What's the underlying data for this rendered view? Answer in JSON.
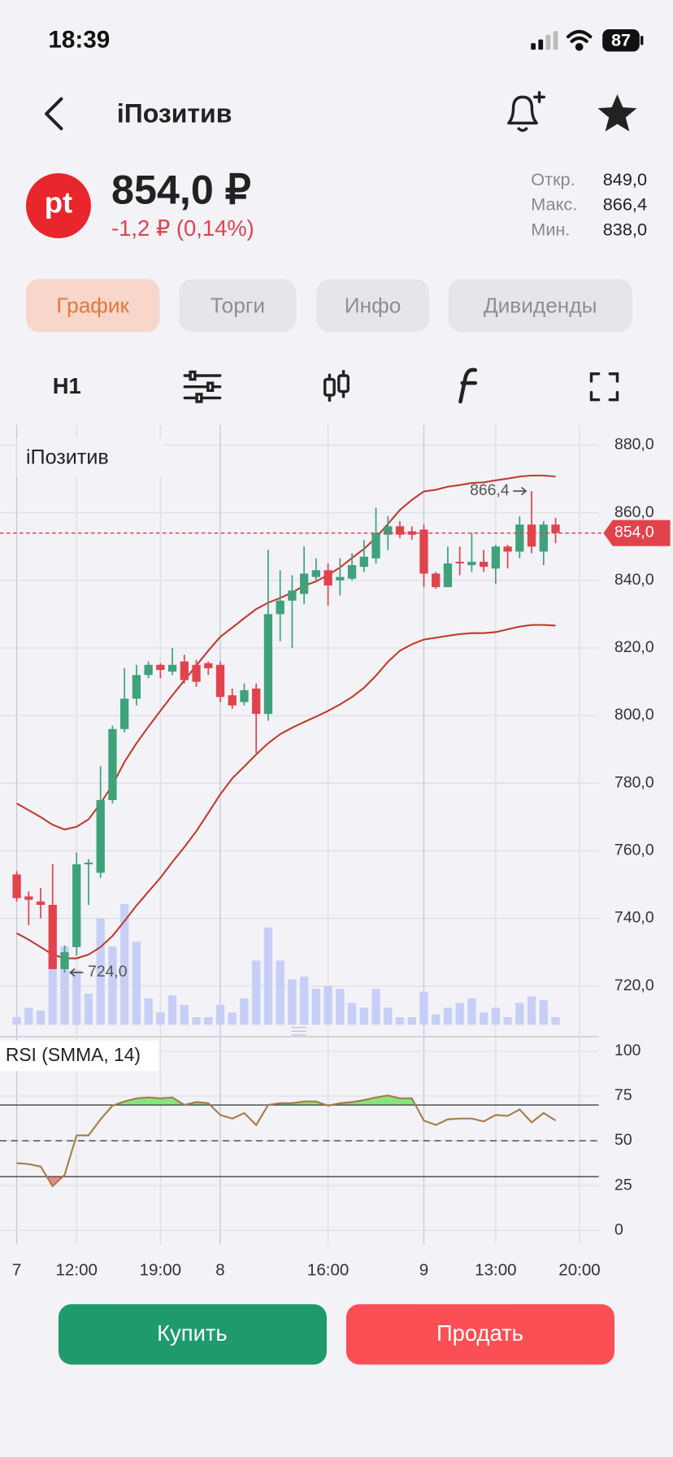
{
  "status_bar": {
    "time": "18:39",
    "battery": "87"
  },
  "header": {
    "title": "iПозитив"
  },
  "quote": {
    "logo": "pt",
    "price": "854,0 ₽",
    "change": "-1,2 ₽ (0,14%)",
    "stats": [
      {
        "label": "Откр.",
        "value": "849,0"
      },
      {
        "label": "Макс.",
        "value": "866,4"
      },
      {
        "label": "Мин.",
        "value": "838,0"
      }
    ]
  },
  "tabs": [
    {
      "label": "График",
      "active": true
    },
    {
      "label": "Торги",
      "active": false
    },
    {
      "label": "Инфо",
      "active": false
    },
    {
      "label": "Дивиденды",
      "active": false
    }
  ],
  "toolbar": {
    "interval": "H1"
  },
  "chart_data": [
    {
      "type": "candlestick",
      "title": "iПозитив",
      "categories": [
        "7",
        null,
        null,
        null,
        null,
        "12:00",
        null,
        null,
        null,
        null,
        null,
        null,
        "19:00",
        null,
        null,
        null,
        null,
        "8",
        null,
        null,
        null,
        null,
        null,
        null,
        null,
        null,
        "16:00",
        null,
        null,
        null,
        null,
        null,
        null,
        null,
        "9",
        null,
        null,
        null,
        null,
        null,
        "13:00",
        null,
        null,
        null,
        null,
        null,
        null,
        "20:00"
      ],
      "open": [
        753,
        746.5,
        745,
        744,
        725,
        731.5,
        756,
        753.5,
        775,
        796,
        805,
        812,
        815,
        813,
        816,
        815,
        815.5,
        815,
        806,
        804,
        808,
        800.5,
        830,
        834,
        836,
        841,
        843,
        840,
        840.5,
        844,
        846.5,
        853.5,
        856,
        854.5,
        855,
        842,
        838,
        845.5,
        844.5,
        845.5,
        843.5,
        850,
        848.5,
        856.5,
        848.5,
        856.5,
        null,
        null
      ],
      "high": [
        754,
        748,
        749,
        756,
        732,
        759.5,
        757.5,
        785,
        797,
        814,
        815,
        816,
        815.5,
        820,
        818,
        816.5,
        816,
        816,
        808,
        809.5,
        809.5,
        849,
        843,
        841.5,
        850,
        846.5,
        845,
        846.5,
        848,
        852,
        861.5,
        859,
        857.5,
        856,
        856.5,
        842.5,
        850,
        850,
        854,
        849,
        850.5,
        850.5,
        859,
        866.4,
        857.5,
        858.5,
        null,
        null
      ],
      "low": [
        745,
        738,
        740,
        725,
        724,
        729,
        744,
        752,
        774,
        795,
        803,
        811,
        811,
        812,
        809.5,
        808.5,
        812,
        804,
        802,
        803,
        789,
        798.5,
        822,
        820,
        833,
        840,
        832.5,
        835.5,
        840,
        842.5,
        845,
        849,
        852.5,
        852,
        838,
        837.5,
        838,
        841.5,
        842.5,
        842.5,
        839,
        843.5,
        846.5,
        848,
        844.5,
        851,
        null,
        null
      ],
      "close": [
        746,
        745.5,
        744,
        725,
        730,
        756,
        756.5,
        775,
        796,
        805,
        812,
        815,
        813.5,
        815,
        810.5,
        810,
        814,
        805.5,
        803,
        807.5,
        800.5,
        830,
        834,
        837,
        842,
        843,
        838.5,
        841,
        844.5,
        847,
        854,
        856,
        853.5,
        853.5,
        842,
        838,
        845,
        845,
        845.5,
        844,
        850,
        848.5,
        856.5,
        850,
        856.5,
        854,
        null,
        null
      ],
      "volume": [
        8,
        18,
        15,
        68,
        83,
        58,
        33,
        113,
        83,
        128,
        88,
        28,
        13,
        31,
        21,
        8,
        8,
        21,
        13,
        28,
        68,
        103,
        68,
        48,
        51,
        38,
        41,
        38,
        23,
        18,
        38,
        18,
        8,
        8,
        35,
        11,
        18,
        23,
        28,
        13,
        18,
        8,
        23,
        30,
        26,
        8,
        null,
        null
      ],
      "bollinger_upper": [
        774,
        772,
        770,
        767.7,
        766.3,
        767.1,
        769.3,
        774,
        779.5,
        786.3,
        791.8,
        796.7,
        801.4,
        806,
        810.4,
        814.8,
        819.2,
        823.3,
        826,
        828.8,
        831.5,
        833.4,
        834.8,
        836.4,
        838.4,
        839.7,
        841.6,
        843.8,
        846.6,
        849.3,
        852.6,
        856.7,
        860.8,
        863.8,
        866.3,
        866.8,
        867.7,
        868.2,
        868.8,
        869,
        869.6,
        870.1,
        870.7,
        871,
        871,
        870.7,
        null,
        null
      ],
      "bollinger_lower": [
        735.6,
        733.7,
        731.5,
        729.3,
        728.2,
        728.2,
        729.3,
        731.5,
        734.8,
        739.2,
        743.8,
        747.9,
        752,
        756.7,
        761.1,
        765.8,
        771.2,
        776.7,
        781.4,
        784.9,
        788.5,
        791.8,
        794.5,
        796.4,
        798.1,
        799.7,
        801.4,
        803.3,
        805.5,
        808.2,
        811.8,
        815.9,
        819.2,
        821.1,
        822.5,
        823,
        823.6,
        824.1,
        824.4,
        824.4,
        824.7,
        825.5,
        826.3,
        826.8,
        826.8,
        826.6,
        null,
        null
      ],
      "ylim": [
        708,
        886
      ],
      "yticks": [
        {
          "value": 720,
          "label": "720,0"
        },
        {
          "value": 740,
          "label": "740,0"
        },
        {
          "value": 760,
          "label": "760,0"
        },
        {
          "value": 780,
          "label": "780,0"
        },
        {
          "value": 800,
          "label": "800,0"
        },
        {
          "value": 820,
          "label": "820,0"
        },
        {
          "value": 840,
          "label": "840,0"
        },
        {
          "value": 860,
          "label": "860,0"
        },
        {
          "value": 880,
          "label": "880,0"
        }
      ],
      "last_price": {
        "value": 854,
        "label": "854,0"
      },
      "max_label": {
        "value": 866.4,
        "label": "866,4"
      },
      "min_label": {
        "value": 724,
        "label": "724,0"
      },
      "up_color": "#3ea27b",
      "down_color": "#e1434d",
      "band_color": "#c0392b",
      "volume_color": "#c8cff6",
      "grid": true
    },
    {
      "type": "line",
      "title": "RSI (SMMA, 14)",
      "values": [
        37.6,
        37,
        35.6,
        24.7,
        31,
        53,
        53,
        62,
        69.6,
        72,
        73.7,
        74.2,
        73.7,
        74.2,
        70,
        71.6,
        71,
        64.4,
        62.4,
        65.5,
        58.8,
        70,
        71,
        71,
        72,
        72,
        69.6,
        71,
        71.6,
        72.7,
        74.2,
        75.3,
        73.7,
        73.7,
        61.3,
        58.8,
        62,
        62.4,
        62.4,
        60.8,
        64.4,
        63.9,
        67.5,
        60.3,
        65.5,
        61.3,
        null,
        null
      ],
      "ylim": [
        -8,
        107
      ],
      "yticks": [
        0,
        25,
        50,
        75,
        100
      ],
      "levels": [
        30,
        50,
        70
      ],
      "color": "#a57a45",
      "overbought_color": "#86e57f",
      "oversold_color": "#f08a8a"
    }
  ],
  "buttons": {
    "buy": "Купить",
    "sell": "Продать"
  }
}
